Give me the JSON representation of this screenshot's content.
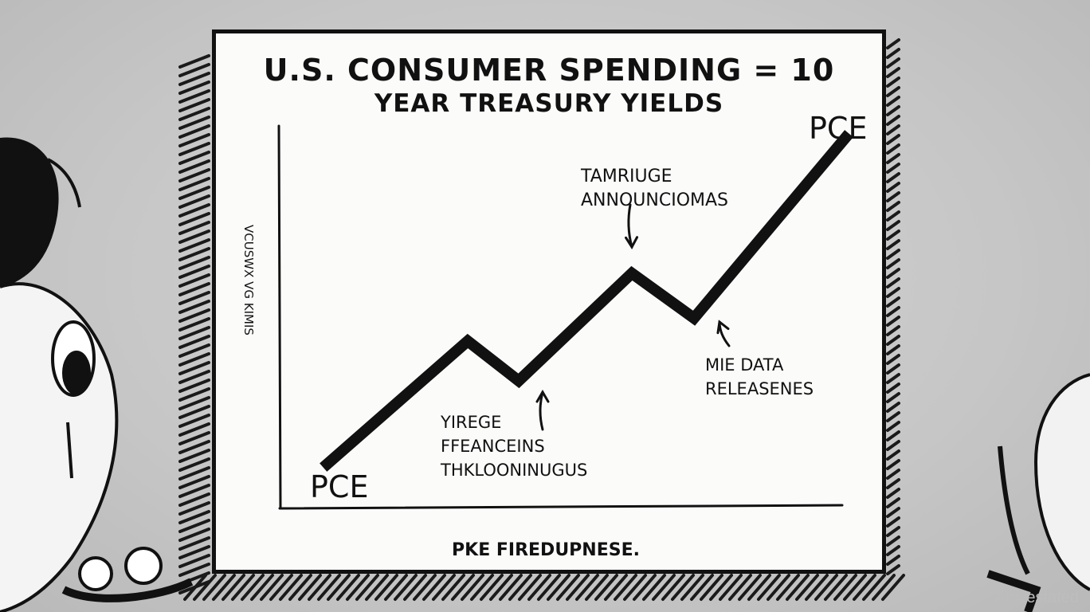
{
  "chart_data": {
    "type": "line",
    "title_line1": "U.S. CONSUMER SPENDING = 10",
    "title_line2": "YEAR TREASURY YIELDS",
    "xlabel": "PKE FIREDUPNESE.",
    "ylabel": "VCUSWX VG KIMIS",
    "series": [
      {
        "values": [
          0,
          1.45,
          0.98,
          2.25,
          1.72,
          3.85
        ]
      }
    ],
    "ylim": [
      0,
      4
    ],
    "start_label": "PCE",
    "end_label": "PCE",
    "annotations": [
      {
        "lines": [
          "YIREGE",
          "FFEANCEINS",
          "THKLOONINUGUS"
        ],
        "points_to": 2
      },
      {
        "lines": [
          "TAMRIUGE",
          "ANNOUNCIOMAS"
        ],
        "points_to": 3
      },
      {
        "lines": [
          "MIE DATA",
          "RELEASENES"
        ],
        "points_to": 4
      }
    ]
  },
  "watermark": "AInvestated",
  "colors": {
    "ink": "#111111",
    "board": "#fbfbfa",
    "background": "#c9c9c9"
  }
}
